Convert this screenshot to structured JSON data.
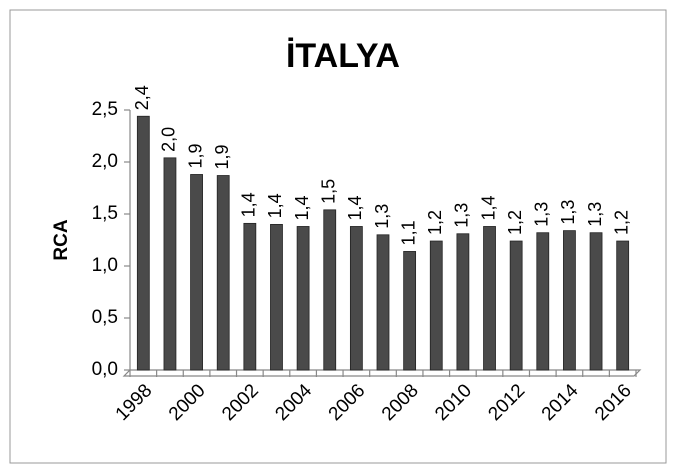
{
  "chart_data": {
    "type": "bar",
    "title": "İTALYA",
    "y_label": "RCA",
    "categories": [
      "1998",
      null,
      "2000",
      null,
      "2002",
      null,
      "2004",
      null,
      "2006",
      null,
      "2008",
      null,
      "2010",
      null,
      "2012",
      null,
      "2014",
      null,
      "2016"
    ],
    "values": [
      2.44,
      2.04,
      1.88,
      1.87,
      1.41,
      1.4,
      1.38,
      1.54,
      1.38,
      1.3,
      1.14,
      1.24,
      1.31,
      1.38,
      1.24,
      1.32,
      1.34,
      1.32,
      1.24
    ],
    "value_labels": [
      "2,4",
      "2,0",
      "1,9",
      "1,9",
      "1,4",
      "1,4",
      "1,4",
      "1,5",
      "1,4",
      "1,3",
      "1,1",
      "1,2",
      "1,3",
      "1,4",
      "1,2",
      "1,3",
      "1,3",
      "1,3",
      "1,2"
    ],
    "color": "#4a4a4a",
    "ylim": [
      0,
      2.5
    ],
    "yticks": [
      {
        "value": 0,
        "label": "0,0"
      },
      {
        "value": 0.5,
        "label": "0,5"
      },
      {
        "value": 1,
        "label": "1,0"
      },
      {
        "value": 1.5,
        "label": "1,5"
      },
      {
        "value": 2,
        "label": "2,0"
      },
      {
        "value": 2.5,
        "label": "2,5"
      }
    ],
    "grid": false
  }
}
